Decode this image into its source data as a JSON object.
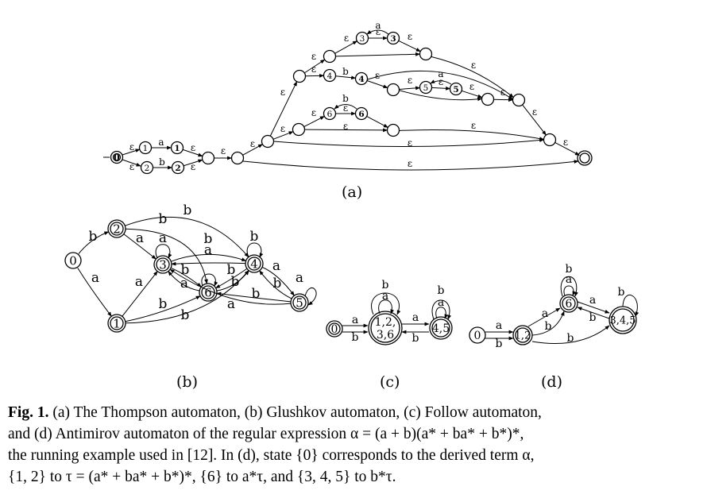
{
  "panels": {
    "a": {
      "label": "(a)",
      "symbols": {
        "eps": "ε",
        "a": "a",
        "b": "b"
      },
      "states": [
        "0",
        "1",
        "1",
        "2",
        "2",
        "3",
        "3",
        "4",
        "4",
        "5",
        "5",
        "6",
        "6"
      ]
    },
    "b": {
      "label": "(b)",
      "states": [
        "0",
        "1",
        "2",
        "3",
        "4",
        "5",
        "6"
      ],
      "edges": [
        {
          "from": "0",
          "to": "2",
          "label": "b"
        },
        {
          "from": "0",
          "to": "1",
          "label": "a"
        },
        {
          "from": "2",
          "to": "3",
          "label": "a"
        },
        {
          "from": "2",
          "to": "6",
          "label": "b"
        },
        {
          "from": "2",
          "to": "4",
          "label": "b"
        },
        {
          "from": "1",
          "to": "3",
          "label": "a"
        },
        {
          "from": "1",
          "to": "6",
          "label": "b"
        },
        {
          "from": "1",
          "to": "4",
          "label": "b"
        },
        {
          "from": "3",
          "to": "3",
          "label": "a"
        },
        {
          "from": "3",
          "to": "4",
          "label": "b"
        },
        {
          "from": "3",
          "to": "6",
          "label": "b"
        },
        {
          "from": "4",
          "to": "4",
          "label": "b"
        },
        {
          "from": "4",
          "to": "3",
          "label": "a"
        },
        {
          "from": "4",
          "to": "5",
          "label": "a"
        },
        {
          "from": "4",
          "to": "6",
          "label": "b"
        },
        {
          "from": "6",
          "to": "3",
          "label": "a"
        },
        {
          "from": "6",
          "to": "4",
          "label": "b"
        },
        {
          "from": "5",
          "to": "5",
          "label": "a"
        },
        {
          "from": "5",
          "to": "4",
          "label": "b"
        },
        {
          "from": "5",
          "to": "6",
          "label": "b"
        },
        {
          "from": "5",
          "to": "3",
          "label": "a"
        }
      ]
    },
    "c": {
      "label": "(c)",
      "states": [
        "0",
        "1,2,",
        "3,6",
        "4,5"
      ],
      "edge_labels": [
        "a",
        "b",
        "a",
        "b",
        "b",
        "a",
        "b",
        "a"
      ]
    },
    "d": {
      "label": "(d)",
      "states": [
        "0",
        "1,2",
        "6",
        "3,4,5"
      ],
      "edge_labels": [
        "a",
        "b",
        "a",
        "b",
        "b",
        "a",
        "b",
        "b",
        "a",
        "b"
      ]
    }
  },
  "caption": {
    "fig_label": "Fig. 1.",
    "line1": " (a) The Thompson automaton, (b) Glushkov automaton, (c) Follow automaton,",
    "line2": "and (d) Antimirov automaton of the regular expression α = (a + b)(a* + ba* + b*)*,",
    "line3": "the running example used in [12]. In (d), state {0} corresponds to the derived term α,",
    "line4": "{1, 2} to τ = (a* + ba* + b*)*, {6} to a*τ, and {3, 4, 5} to b*τ."
  }
}
